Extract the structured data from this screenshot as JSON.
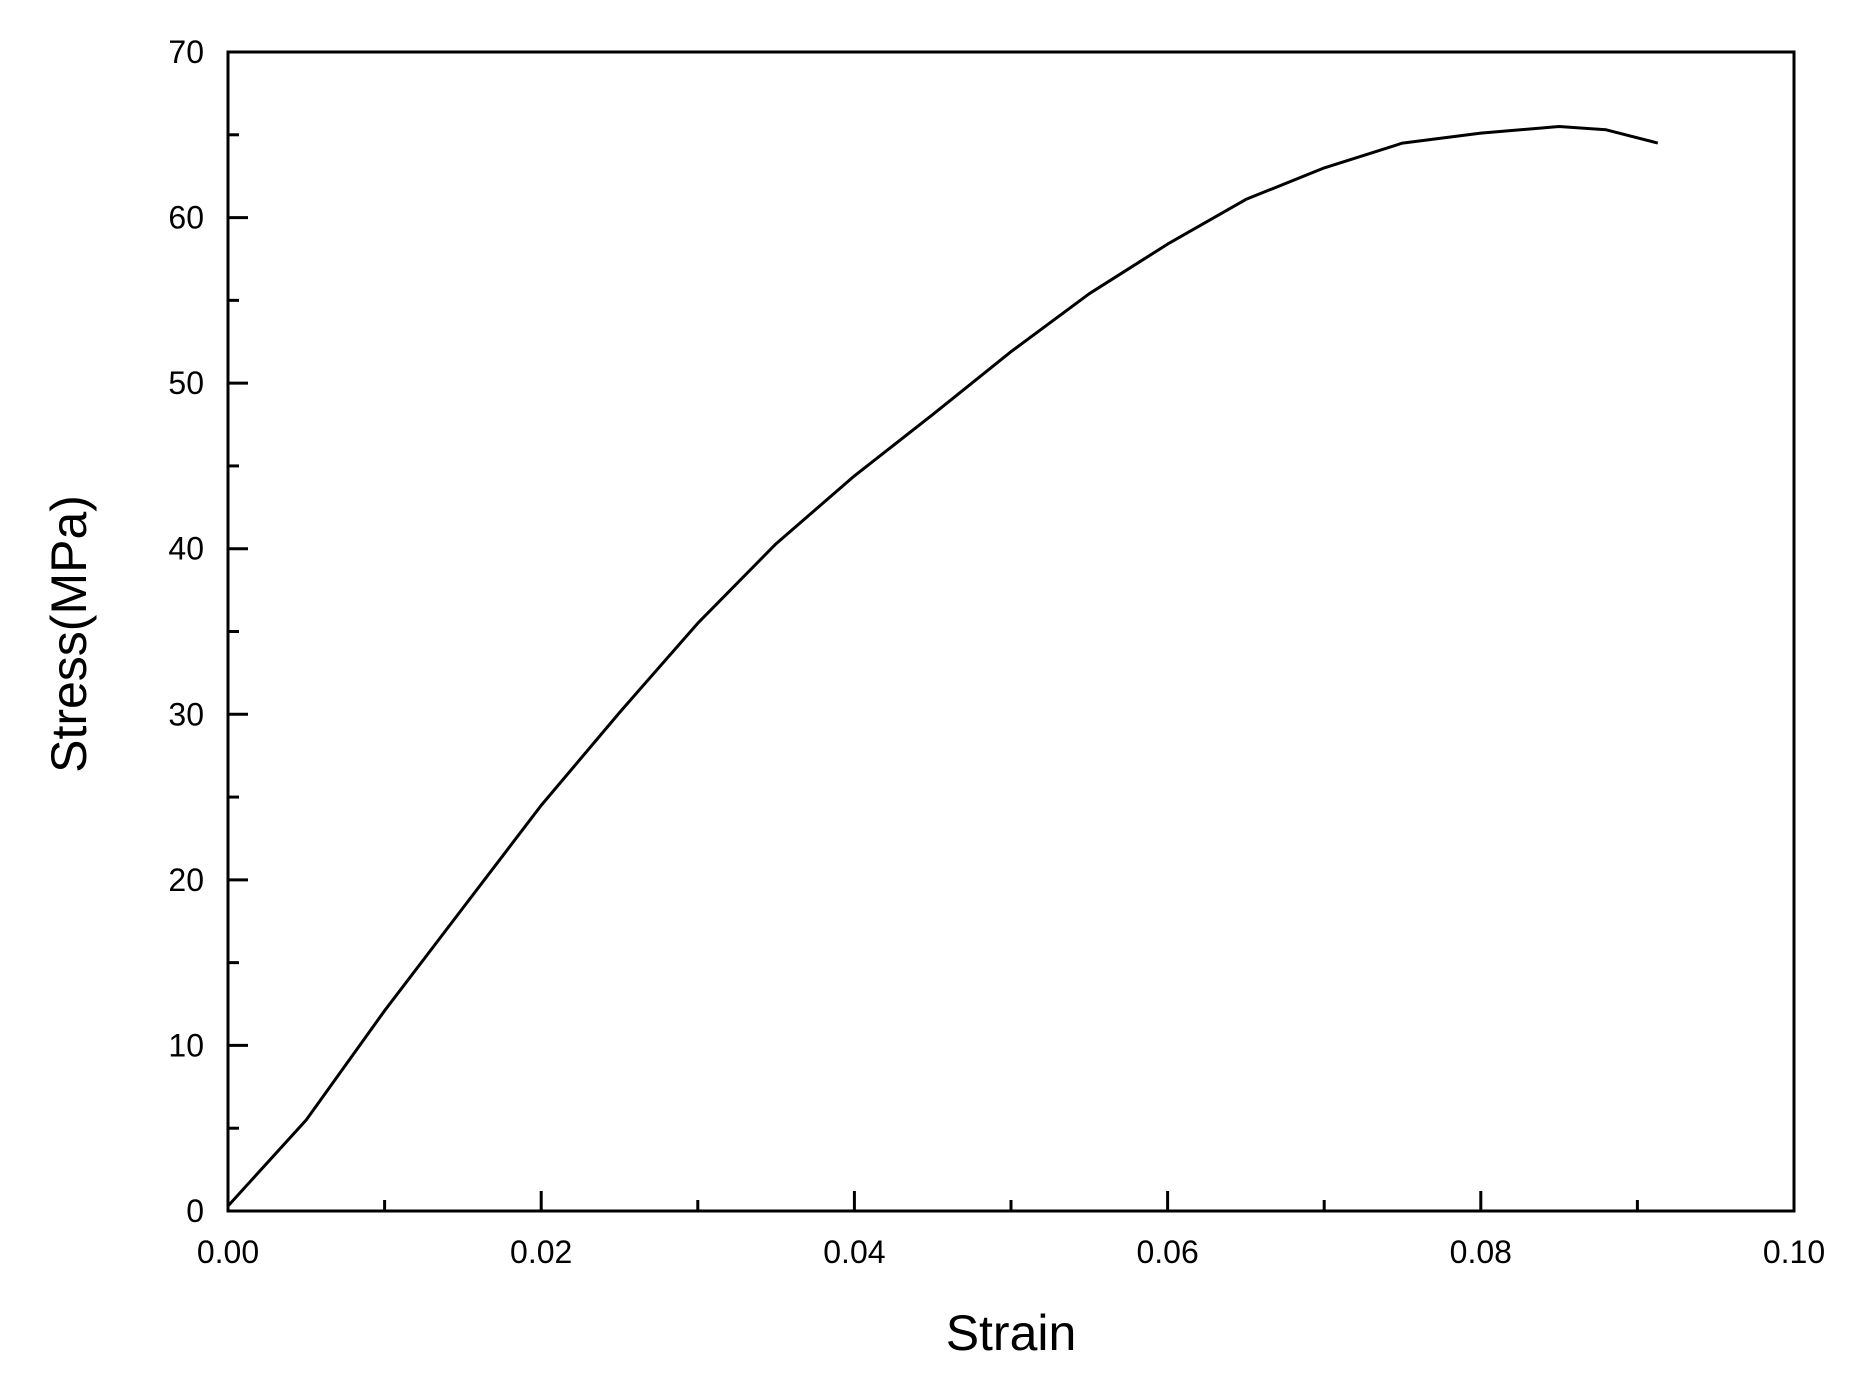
{
  "chart_data": {
    "type": "line",
    "x_label": "Strain",
    "y_label": "Stress(MPa)",
    "x": [
      0.0,
      0.005,
      0.01,
      0.015,
      0.02,
      0.025,
      0.03,
      0.035,
      0.04,
      0.045,
      0.05,
      0.055,
      0.06,
      0.065,
      0.07,
      0.075,
      0.08,
      0.085,
      0.088,
      0.0913
    ],
    "series": [
      {
        "color": "#000000",
        "values": [
          0.3,
          5.5,
          12.1,
          18.3,
          24.5,
          30.1,
          35.5,
          40.3,
          44.4,
          48.1,
          51.9,
          55.4,
          58.4,
          61.1,
          63.0,
          64.5,
          65.1,
          65.5,
          65.3,
          64.5
        ]
      }
    ],
    "xlim": [
      0,
      0.1
    ],
    "xticks": [
      {
        "value": 0,
        "label": "0.00"
      },
      {
        "value": 0.02,
        "label": "0.02"
      },
      {
        "value": 0.04,
        "label": "0.04"
      },
      {
        "value": 0.06,
        "label": "0.06"
      },
      {
        "value": 0.08,
        "label": "0.08"
      },
      {
        "value": 0.1,
        "label": "0.10"
      }
    ],
    "ylim": [
      0,
      70
    ],
    "yticks": [
      0,
      10,
      20,
      30,
      40,
      50,
      60,
      70
    ],
    "grid": false
  }
}
